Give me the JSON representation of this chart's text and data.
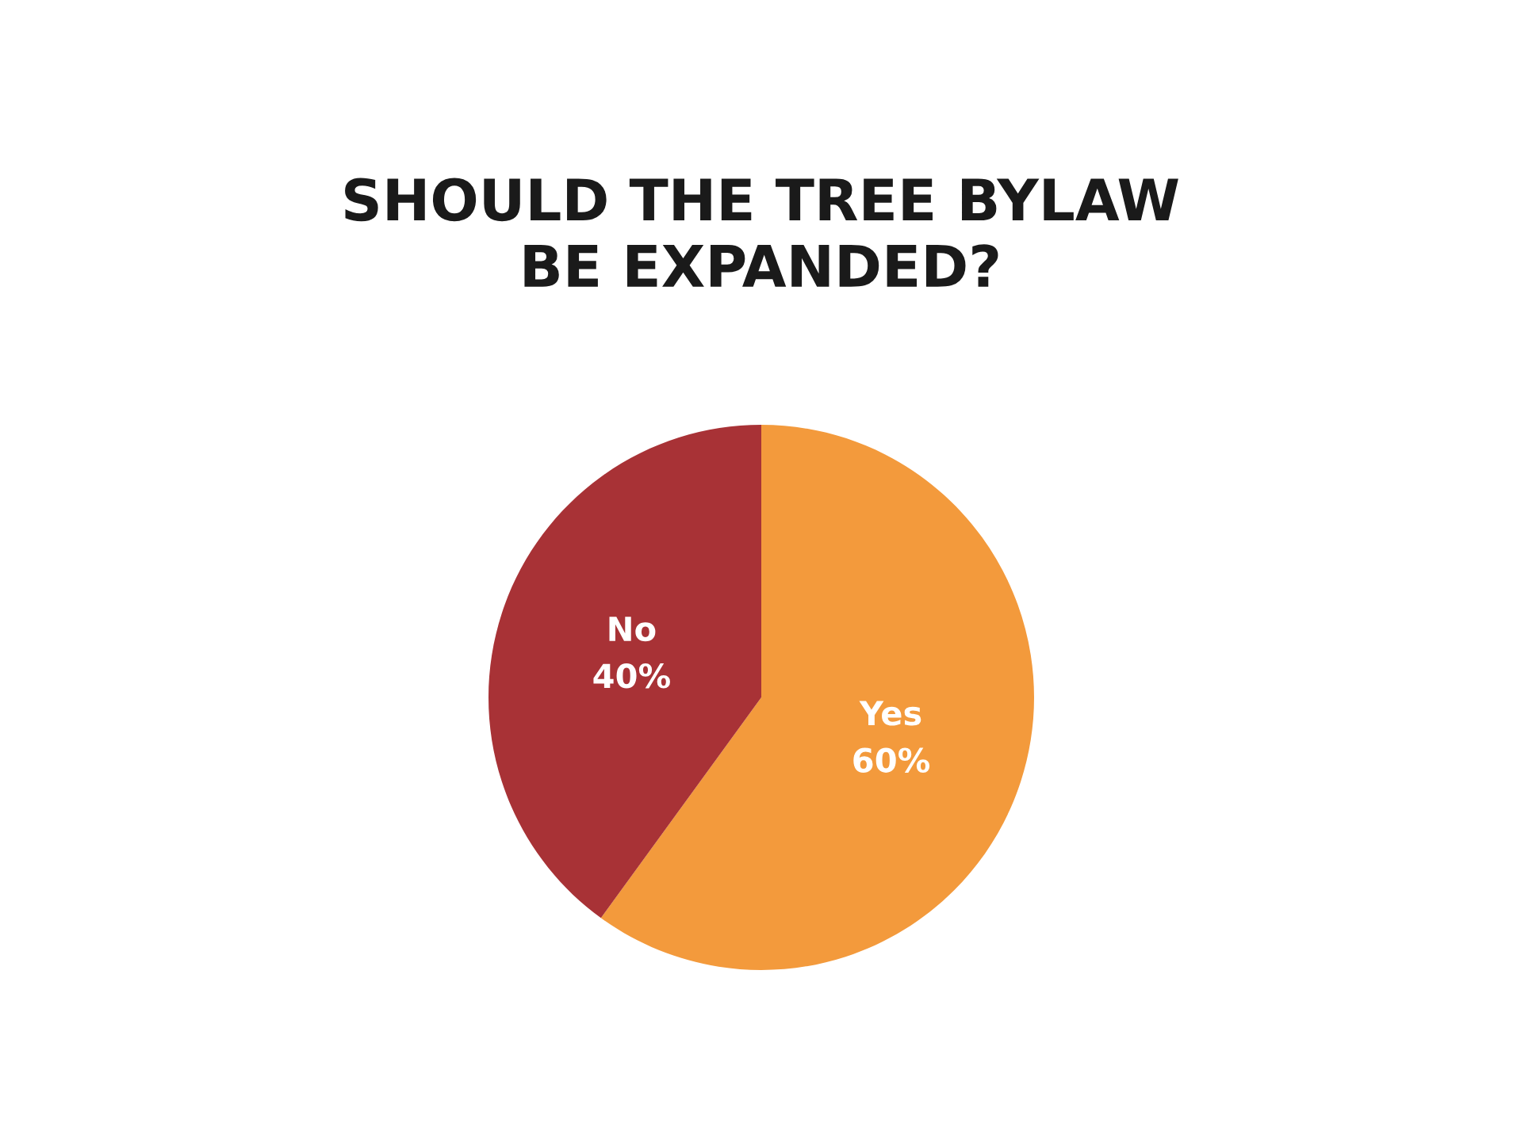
{
  "chart_data": {
    "type": "pie",
    "title": "SHOULD THE TREE BYLAW\nBE EXPANDED?",
    "categories": [
      "Yes",
      "No"
    ],
    "values": [
      60,
      40
    ],
    "value_labels": [
      "60%",
      "40%"
    ],
    "colors": [
      "#f39a3c",
      "#a83236"
    ],
    "legend": false
  }
}
